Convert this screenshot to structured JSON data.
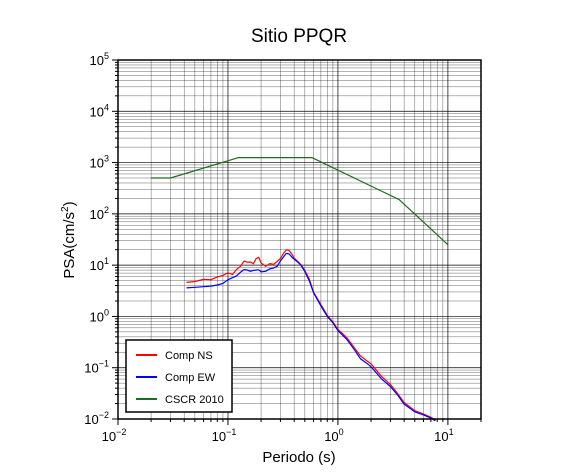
{
  "chart_data": {
    "type": "line",
    "title": "Sitio PPQR",
    "xlabel": "Periodo (s)",
    "ylabel_main": "PSA(cm/s",
    "ylabel_sup": "2",
    "ylabel_end": ")",
    "xscale": "log",
    "yscale": "log",
    "xlim": [
      0.01,
      20
    ],
    "ylim": [
      0.01,
      100000
    ],
    "grid": true,
    "legend_position": "bottom-left",
    "x_ticks": [
      {
        "base": "10",
        "exp": "−2",
        "value": 0.01
      },
      {
        "base": "10",
        "exp": "−1",
        "value": 0.1
      },
      {
        "base": "10",
        "exp": "0",
        "value": 1
      },
      {
        "base": "10",
        "exp": "1",
        "value": 10
      }
    ],
    "y_ticks": [
      {
        "base": "10",
        "exp": "−2",
        "value": 0.01
      },
      {
        "base": "10",
        "exp": "−1",
        "value": 0.1
      },
      {
        "base": "10",
        "exp": "0",
        "value": 1
      },
      {
        "base": "10",
        "exp": "1",
        "value": 10
      },
      {
        "base": "10",
        "exp": "2",
        "value": 100
      },
      {
        "base": "10",
        "exp": "3",
        "value": 1000
      },
      {
        "base": "10",
        "exp": "4",
        "value": 10000
      },
      {
        "base": "10",
        "exp": "5",
        "value": 100000
      }
    ],
    "series": [
      {
        "name": "Comp NS",
        "color": "#ff0000",
        "x": [
          0.042,
          0.05,
          0.06,
          0.07,
          0.08,
          0.09,
          0.1,
          0.11,
          0.12,
          0.13,
          0.14,
          0.15,
          0.16,
          0.17,
          0.18,
          0.19,
          0.2,
          0.22,
          0.24,
          0.26,
          0.28,
          0.3,
          0.32,
          0.34,
          0.36,
          0.38,
          0.4,
          0.43,
          0.46,
          0.5,
          0.55,
          0.6,
          0.7,
          0.8,
          0.9,
          1.0,
          1.2,
          1.4,
          1.6,
          1.8,
          2.0,
          2.5,
          3.0,
          3.5,
          4.0,
          5.0,
          6.0,
          7.0,
          7.7
        ],
        "y": [
          4.6,
          4.8,
          5.3,
          5.2,
          5.9,
          6.3,
          7.1,
          6.6,
          8.3,
          9.5,
          12.0,
          11.4,
          11.5,
          10.6,
          13.3,
          14.3,
          11.0,
          9.5,
          10.7,
          10.4,
          11.8,
          13.4,
          17.0,
          20.0,
          19.3,
          16.6,
          13.8,
          11.9,
          10.3,
          7.9,
          5.3,
          3.0,
          1.7,
          1.05,
          0.78,
          0.56,
          0.39,
          0.25,
          0.17,
          0.14,
          0.12,
          0.067,
          0.047,
          0.031,
          0.021,
          0.0145,
          0.0125,
          0.0108,
          0.0095
        ]
      },
      {
        "name": "Comp EW",
        "color": "#0000ff",
        "x": [
          0.042,
          0.05,
          0.06,
          0.07,
          0.08,
          0.09,
          0.1,
          0.11,
          0.12,
          0.13,
          0.14,
          0.15,
          0.16,
          0.17,
          0.18,
          0.19,
          0.2,
          0.22,
          0.24,
          0.26,
          0.28,
          0.3,
          0.32,
          0.34,
          0.36,
          0.38,
          0.4,
          0.43,
          0.46,
          0.5,
          0.55,
          0.6,
          0.7,
          0.8,
          0.9,
          1.0,
          1.2,
          1.4,
          1.6,
          1.8,
          2.0,
          2.5,
          3.0,
          3.5,
          4.0,
          5.0,
          6.0,
          7.0,
          7.7
        ],
        "y": [
          3.6,
          3.7,
          3.8,
          3.9,
          4.1,
          4.4,
          5.2,
          5.7,
          6.2,
          7.3,
          8.2,
          8.0,
          7.6,
          7.9,
          8.0,
          8.1,
          7.4,
          7.6,
          8.5,
          8.8,
          9.5,
          12.0,
          14.5,
          17.0,
          16.5,
          14.5,
          13.0,
          11.5,
          10.0,
          7.5,
          4.9,
          2.9,
          1.6,
          1.0,
          0.75,
          0.53,
          0.36,
          0.23,
          0.15,
          0.125,
          0.105,
          0.06,
          0.043,
          0.029,
          0.0195,
          0.0138,
          0.012,
          0.0104,
          0.0092
        ]
      },
      {
        "name": "CSCR 2010",
        "color": "#1f6b1f",
        "x": [
          0.02,
          0.03,
          0.125,
          0.58,
          3.6,
          10.0
        ],
        "y": [
          500,
          500,
          1250,
          1250,
          190,
          25
        ]
      }
    ]
  }
}
